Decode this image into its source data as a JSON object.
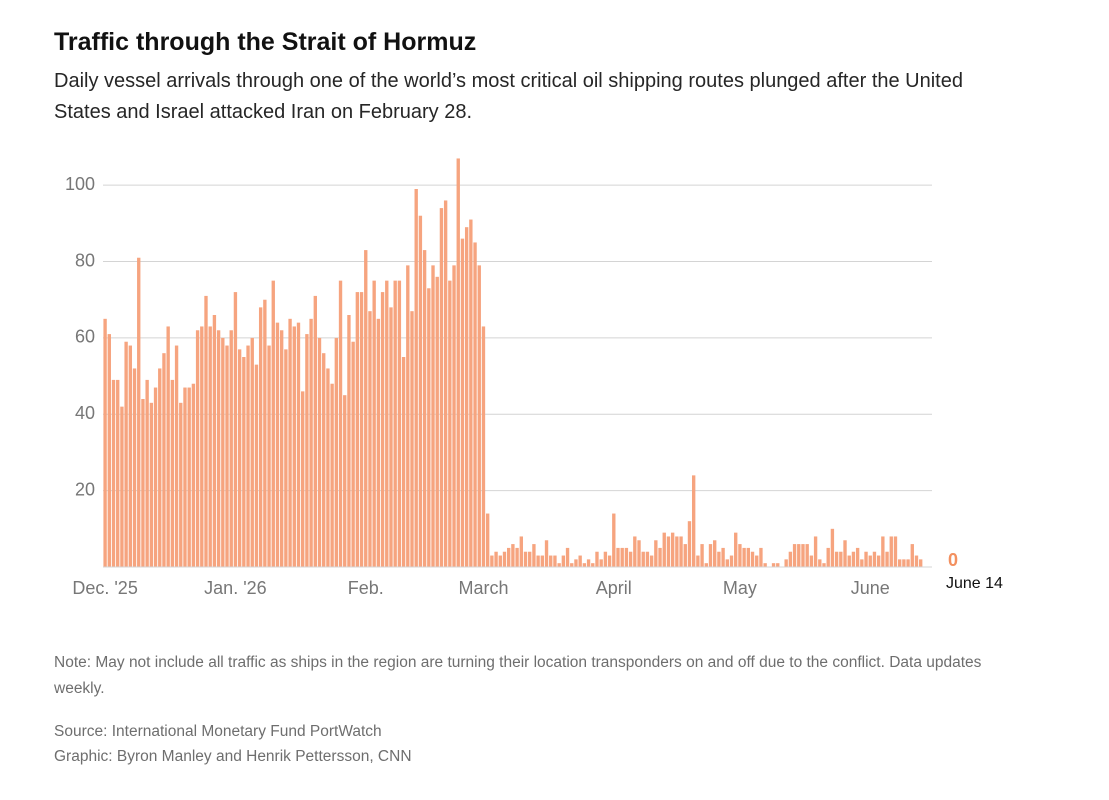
{
  "chart_data": {
    "type": "bar",
    "title": "Traffic through the Strait of Hormuz",
    "subtitle": "Daily vessel arrivals through one of the world’s most critical oil shipping routes plunged after the United States and Israel attacked Iran on February 28.",
    "categories": [
      "Dec. '25",
      null,
      null,
      null,
      null,
      null,
      null,
      null,
      null,
      null,
      null,
      null,
      null,
      null,
      null,
      null,
      null,
      null,
      null,
      null,
      null,
      null,
      null,
      null,
      null,
      null,
      null,
      null,
      null,
      null,
      null,
      "Jan. '26",
      null,
      null,
      null,
      null,
      null,
      null,
      null,
      null,
      null,
      null,
      null,
      null,
      null,
      null,
      null,
      null,
      null,
      null,
      null,
      null,
      null,
      null,
      null,
      null,
      null,
      null,
      null,
      null,
      null,
      null,
      "Feb.",
      null,
      null,
      null,
      null,
      null,
      null,
      null,
      null,
      null,
      null,
      null,
      null,
      null,
      null,
      null,
      null,
      null,
      null,
      null,
      null,
      null,
      null,
      null,
      null,
      null,
      null,
      null,
      "March",
      null,
      null,
      null,
      null,
      null,
      null,
      null,
      null,
      null,
      null,
      null,
      null,
      null,
      null,
      null,
      null,
      null,
      null,
      null,
      null,
      null,
      null,
      null,
      null,
      null,
      null,
      null,
      null,
      null,
      null,
      "April",
      null,
      null,
      null,
      null,
      null,
      null,
      null,
      null,
      null,
      null,
      null,
      null,
      null,
      null,
      null,
      null,
      null,
      null,
      null,
      null,
      null,
      null,
      null,
      null,
      null,
      null,
      null,
      null,
      null,
      "May",
      null,
      null,
      null,
      null,
      null,
      null,
      null,
      null,
      null,
      null,
      null,
      null,
      null,
      null,
      null,
      null,
      null,
      null,
      null,
      null,
      null,
      null,
      null,
      null,
      null,
      null,
      null,
      null,
      null,
      null,
      "June",
      null,
      null,
      null,
      null,
      null,
      null,
      null,
      null,
      null,
      null,
      null,
      null,
      "June 14"
    ],
    "values": [
      65,
      61,
      49,
      49,
      42,
      59,
      58,
      52,
      81,
      44,
      49,
      43,
      47,
      52,
      56,
      63,
      49,
      58,
      43,
      47,
      47,
      48,
      62,
      63,
      71,
      63,
      66,
      62,
      60,
      58,
      62,
      72,
      57,
      55,
      58,
      60,
      53,
      68,
      70,
      58,
      75,
      64,
      62,
      57,
      65,
      63,
      64,
      46,
      61,
      65,
      71,
      60,
      56,
      52,
      48,
      60,
      75,
      45,
      66,
      59,
      72,
      72,
      83,
      67,
      75,
      65,
      72,
      75,
      68,
      75,
      75,
      55,
      79,
      67,
      99,
      92,
      83,
      73,
      79,
      76,
      94,
      96,
      75,
      79,
      107,
      86,
      89,
      91,
      85,
      79,
      63,
      14,
      3,
      4,
      3,
      4,
      5,
      6,
      5,
      8,
      4,
      4,
      6,
      3,
      3,
      7,
      3,
      3,
      1,
      3,
      5,
      1,
      2,
      3,
      1,
      2,
      1,
      4,
      2,
      4,
      3,
      14,
      5,
      5,
      5,
      4,
      8,
      7,
      4,
      4,
      3,
      7,
      5,
      9,
      8,
      9,
      8,
      8,
      6,
      12,
      24,
      3,
      6,
      1,
      6,
      7,
      4,
      5,
      2,
      3,
      9,
      6,
      5,
      5,
      4,
      3,
      5,
      1,
      0,
      1,
      1,
      0,
      2,
      4,
      6,
      6,
      6,
      6,
      3,
      8,
      2,
      1,
      5,
      10,
      4,
      4,
      7,
      3,
      4,
      5,
      2,
      4,
      3,
      4,
      3,
      8,
      4,
      8,
      8,
      2,
      2,
      2,
      6,
      3,
      2,
      0
    ],
    "color": "#f6a47f",
    "label_color": "#f3905f",
    "ylim": [
      0,
      110
    ],
    "yticks": [
      20,
      40,
      60,
      80,
      100
    ],
    "grid": true
  },
  "notes": {
    "note": "Note: May not include all traffic as ships in the region are turning their location transponders on and off due to the conflict. Data updates weekly.",
    "source": "Source: International Monetary Fund PortWatch",
    "graphic": "Graphic: Byron Manley and Henrik Pettersson, CNN"
  }
}
